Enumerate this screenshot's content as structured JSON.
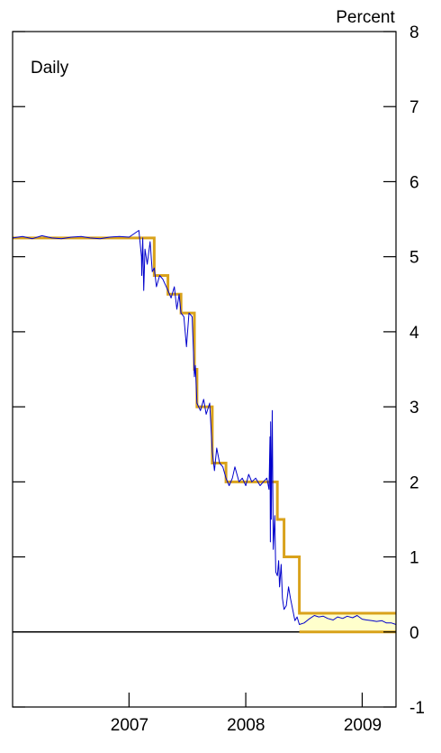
{
  "chart_data": {
    "type": "line",
    "frequency_label": "Daily",
    "unit_label": "Percent",
    "x": {
      "start": "2006-07-01",
      "end": "2009-10-15",
      "tick_labels": [
        "2007",
        "2008",
        "2009"
      ],
      "tick_positions": [
        "2007-01-01",
        "2008-01-01",
        "2009-01-01"
      ],
      "minor_ticks": [
        "2007-07-01",
        "2008-07-01",
        "2009-07-01"
      ]
    },
    "y": {
      "min": -1,
      "max": 8,
      "tick_values": [
        -1,
        0,
        1,
        2,
        3,
        4,
        5,
        6,
        7,
        8
      ],
      "tick_labels": [
        "-1",
        "0",
        "1",
        "2",
        "3",
        "4",
        "5",
        "6",
        "7",
        "8"
      ],
      "side": "right"
    },
    "zero_line": 0,
    "target_rate": {
      "color": "#d9a21b",
      "steps": [
        [
          "2006-07-01",
          5.25
        ],
        [
          "2007-09-18",
          4.75
        ],
        [
          "2007-10-31",
          4.5
        ],
        [
          "2007-12-11",
          4.25
        ],
        [
          "2008-01-22",
          3.5
        ],
        [
          "2008-01-30",
          3.0
        ],
        [
          "2008-03-18",
          2.25
        ],
        [
          "2008-04-30",
          2.0
        ],
        [
          "2008-10-08",
          1.5
        ],
        [
          "2008-10-29",
          1.0
        ],
        [
          "2008-12-16",
          0.25
        ],
        [
          "2009-10-15",
          0.25
        ]
      ],
      "range_band": {
        "from": "2008-12-16",
        "to": "2009-10-15",
        "low": 0,
        "high": 0.25,
        "fill": "#ffffcc"
      }
    },
    "effective_rate": {
      "color": "#0000cc",
      "points": [
        [
          "2006-07-01",
          5.25
        ],
        [
          "2006-08-01",
          5.27
        ],
        [
          "2006-09-01",
          5.24
        ],
        [
          "2006-10-01",
          5.28
        ],
        [
          "2006-11-01",
          5.25
        ],
        [
          "2006-12-01",
          5.24
        ],
        [
          "2007-01-01",
          5.26
        ],
        [
          "2007-02-01",
          5.27
        ],
        [
          "2007-03-01",
          5.25
        ],
        [
          "2007-04-01",
          5.24
        ],
        [
          "2007-05-01",
          5.26
        ],
        [
          "2007-06-01",
          5.27
        ],
        [
          "2007-07-01",
          5.26
        ],
        [
          "2007-08-01",
          5.35
        ],
        [
          "2007-08-09",
          5.0
        ],
        [
          "2007-08-10",
          4.75
        ],
        [
          "2007-08-13",
          5.25
        ],
        [
          "2007-08-16",
          4.55
        ],
        [
          "2007-08-20",
          5.1
        ],
        [
          "2007-08-27",
          4.9
        ],
        [
          "2007-09-05",
          5.2
        ],
        [
          "2007-09-12",
          4.8
        ],
        [
          "2007-09-18",
          4.85
        ],
        [
          "2007-09-25",
          4.6
        ],
        [
          "2007-10-05",
          4.75
        ],
        [
          "2007-10-15",
          4.7
        ],
        [
          "2007-10-31",
          4.55
        ],
        [
          "2007-11-10",
          4.45
        ],
        [
          "2007-11-20",
          4.6
        ],
        [
          "2007-11-28",
          4.3
        ],
        [
          "2007-12-05",
          4.5
        ],
        [
          "2007-12-11",
          4.25
        ],
        [
          "2007-12-20",
          4.2
        ],
        [
          "2007-12-28",
          3.8
        ],
        [
          "2008-01-05",
          4.25
        ],
        [
          "2008-01-15",
          4.2
        ],
        [
          "2008-01-22",
          3.4
        ],
        [
          "2008-01-25",
          3.55
        ],
        [
          "2008-01-30",
          3.05
        ],
        [
          "2008-02-10",
          2.95
        ],
        [
          "2008-02-20",
          3.1
        ],
        [
          "2008-02-28",
          2.9
        ],
        [
          "2008-03-10",
          3.05
        ],
        [
          "2008-03-18",
          2.4
        ],
        [
          "2008-03-25",
          2.15
        ],
        [
          "2008-04-01",
          2.45
        ],
        [
          "2008-04-10",
          2.25
        ],
        [
          "2008-04-20",
          2.2
        ],
        [
          "2008-04-30",
          2.05
        ],
        [
          "2008-05-10",
          1.95
        ],
        [
          "2008-05-20",
          2.05
        ],
        [
          "2008-05-28",
          2.2
        ],
        [
          "2008-06-10",
          2.0
        ],
        [
          "2008-06-20",
          2.05
        ],
        [
          "2008-07-01",
          1.95
        ],
        [
          "2008-07-10",
          2.1
        ],
        [
          "2008-07-20",
          2.0
        ],
        [
          "2008-08-01",
          2.05
        ],
        [
          "2008-08-15",
          1.95
        ],
        [
          "2008-08-25",
          2.0
        ],
        [
          "2008-09-05",
          2.05
        ],
        [
          "2008-09-12",
          1.9
        ],
        [
          "2008-09-15",
          2.6
        ],
        [
          "2008-09-16",
          1.2
        ],
        [
          "2008-09-17",
          2.8
        ],
        [
          "2008-09-19",
          1.5
        ],
        [
          "2008-09-22",
          2.95
        ],
        [
          "2008-09-25",
          1.1
        ],
        [
          "2008-09-30",
          1.55
        ],
        [
          "2008-10-03",
          0.8
        ],
        [
          "2008-10-08",
          0.75
        ],
        [
          "2008-10-12",
          0.95
        ],
        [
          "2008-10-15",
          0.6
        ],
        [
          "2008-10-20",
          0.9
        ],
        [
          "2008-10-24",
          0.45
        ],
        [
          "2008-10-29",
          0.3
        ],
        [
          "2008-11-05",
          0.35
        ],
        [
          "2008-11-12",
          0.6
        ],
        [
          "2008-11-18",
          0.45
        ],
        [
          "2008-11-25",
          0.3
        ],
        [
          "2008-12-02",
          0.15
        ],
        [
          "2008-12-09",
          0.2
        ],
        [
          "2008-12-16",
          0.1
        ],
        [
          "2008-12-31",
          0.12
        ],
        [
          "2009-01-15",
          0.17
        ],
        [
          "2009-02-01",
          0.22
        ],
        [
          "2009-02-15",
          0.2
        ],
        [
          "2009-03-01",
          0.21
        ],
        [
          "2009-03-15",
          0.18
        ],
        [
          "2009-04-01",
          0.16
        ],
        [
          "2009-04-15",
          0.2
        ],
        [
          "2009-05-01",
          0.18
        ],
        [
          "2009-05-15",
          0.21
        ],
        [
          "2009-06-01",
          0.19
        ],
        [
          "2009-06-15",
          0.22
        ],
        [
          "2009-07-01",
          0.17
        ],
        [
          "2009-07-15",
          0.16
        ],
        [
          "2009-08-01",
          0.15
        ],
        [
          "2009-08-15",
          0.14
        ],
        [
          "2009-09-01",
          0.15
        ],
        [
          "2009-09-15",
          0.12
        ],
        [
          "2009-10-01",
          0.12
        ],
        [
          "2009-10-15",
          0.1
        ]
      ]
    }
  }
}
